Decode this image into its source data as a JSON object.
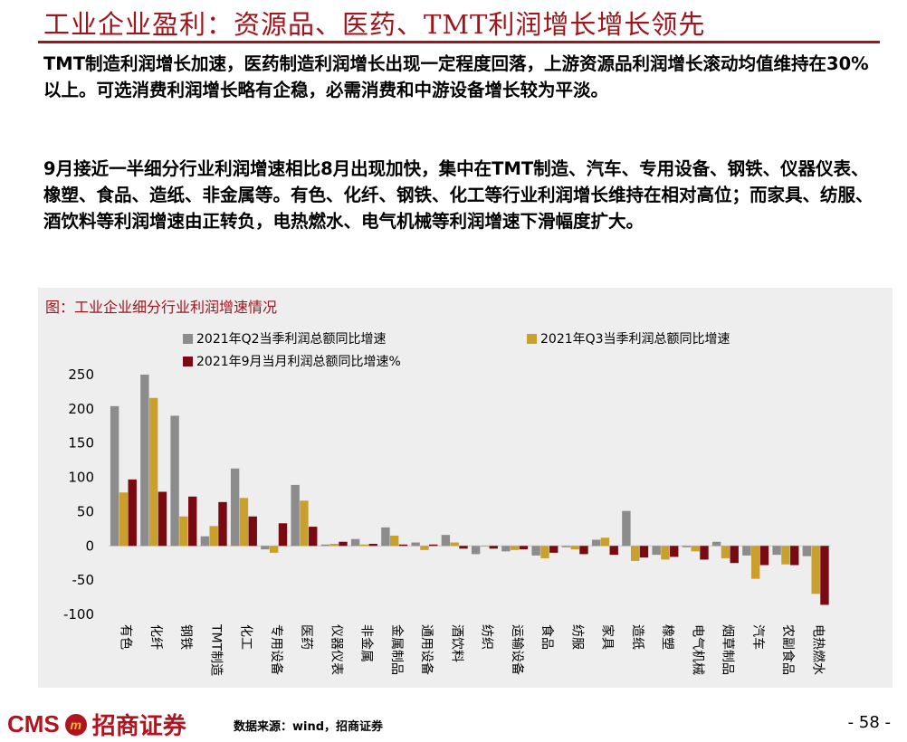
{
  "slide": {
    "title": "工业企业盈利：资源品、医药、TMT利润增长增长领先",
    "paragraph1": "TMT制造利润增长加速，医药制造利润增长出现一定程度回落，上游资源品利润增长滚动均值维持在30%以上。可选消费利润增长略有企稳，必需消费和中游设备增长较为平淡。",
    "paragraph2": "9月接近一半细分行业利润增速相比8月出现加快，集中在TMT制造、汽车、专用设备、钢铁、仪器仪表、橡塑、食品、造纸、非金属等。有色、化纤、钢铁、化工等行业利润增长维持在相对高位；而家具、纺服、酒饮料等利润增速由正转负，电热燃水、电气机械等利润增速下滑幅度扩大。",
    "source": "数据来源：wind，招商证券",
    "page_number": "- 58 -",
    "logo_text": "CMS",
    "logo_mark": "m",
    "logo_cn": "招商证券"
  },
  "colors": {
    "accent": "#a0141c",
    "series1": "#8c8c8c",
    "series2": "#c9a02e",
    "series3": "#7a0a12"
  },
  "chart_data": {
    "type": "bar",
    "title": "图：工业企业细分行业利润增速情况",
    "xlabel": "",
    "ylabel": "",
    "ylim": [
      -100,
      250
    ],
    "yticks": [
      "250",
      "200",
      "150",
      "100",
      "50",
      "0",
      "-50",
      "-100"
    ],
    "grid": false,
    "legend_position": "top",
    "categories": [
      "有色",
      "化纤",
      "钢铁",
      "TMT制造",
      "化工",
      "专用设备",
      "医药",
      "仪器仪表",
      "非金属",
      "金属制品",
      "通用设备",
      "酒饮料",
      "纺织",
      "运输设备",
      "食品",
      "纺服",
      "家具",
      "造纸",
      "橡塑",
      "电气机械",
      "烟草制品",
      "汽车",
      "农副食品",
      "电热燃水"
    ],
    "series": [
      {
        "name": "2021年Q2当季利润总额同比增速",
        "values": [
          204,
          250,
          190,
          14,
          113,
          -5,
          89,
          2,
          10,
          27,
          5,
          16,
          -12,
          -8,
          -14,
          -2,
          9,
          51,
          -13,
          -2,
          6,
          -14,
          -13,
          -15
        ]
      },
      {
        "name": "2021年Q3当季利润总额同比增速",
        "values": [
          78,
          216,
          43,
          29,
          70,
          -10,
          66,
          3,
          2,
          15,
          -6,
          5,
          -1,
          -6,
          -18,
          -5,
          12,
          -22,
          -20,
          -8,
          -18,
          -48,
          -27,
          -70
        ]
      },
      {
        "name": "2021年9月当月利润总额同比增速%",
        "values": [
          97,
          79,
          72,
          64,
          43,
          33,
          28,
          6,
          3,
          2,
          2,
          -4,
          -4,
          -5,
          -10,
          -12,
          -13,
          -17,
          -16,
          -20,
          -25,
          -28,
          -28,
          -86
        ]
      }
    ]
  }
}
